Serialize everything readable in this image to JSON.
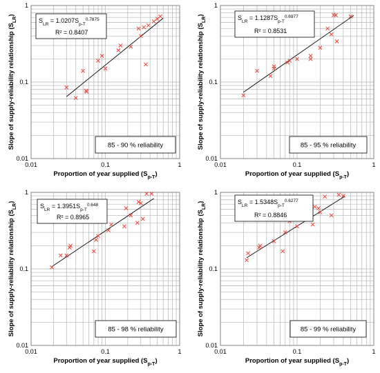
{
  "chart_data": [
    {
      "type": "scatter",
      "xlabel": "Proportion of year supplied (S",
      "xlabel_sub": "p-T",
      "ylabel": "Slope of supply-reliability relationship (S",
      "ylabel_sub": "LR",
      "x_scale": "log",
      "y_scale": "log",
      "xlim": [
        0.01,
        1
      ],
      "ylim": [
        0.01,
        1
      ],
      "x_ticks": [
        "0.01",
        "0.1",
        "1"
      ],
      "y_ticks": [
        "0.01",
        "0.1",
        "1"
      ],
      "grid": true,
      "equation": {
        "a": "S",
        "a_sub": "LR",
        "b": " = 1.0207S",
        "b_sub": "p-T",
        "exp": "0.7875"
      },
      "r2": "R² = 0.8407",
      "reliability_label": "85 - 90 % reliability",
      "fit": {
        "coef": 1.0207,
        "exp": 0.7875,
        "x_range": [
          0.03,
          0.6
        ]
      },
      "points": [
        [
          0.03,
          0.085
        ],
        [
          0.04,
          0.062
        ],
        [
          0.05,
          0.14
        ],
        [
          0.055,
          0.077
        ],
        [
          0.056,
          0.075
        ],
        [
          0.08,
          0.19
        ],
        [
          0.09,
          0.22
        ],
        [
          0.1,
          0.15
        ],
        [
          0.15,
          0.26
        ],
        [
          0.16,
          0.3
        ],
        [
          0.22,
          0.29
        ],
        [
          0.28,
          0.5
        ],
        [
          0.3,
          0.4
        ],
        [
          0.33,
          0.52
        ],
        [
          0.35,
          0.17
        ],
        [
          0.38,
          0.55
        ],
        [
          0.45,
          0.62
        ],
        [
          0.5,
          0.67
        ],
        [
          0.55,
          0.72
        ]
      ]
    },
    {
      "type": "scatter",
      "xlabel": "Proportion of year supplied (S",
      "xlabel_sub": "p-T",
      "ylabel": "Slope of supply-reliability relationship (S",
      "ylabel_sub": "LR",
      "x_scale": "log",
      "y_scale": "log",
      "xlim": [
        0.01,
        1
      ],
      "ylim": [
        0.01,
        1
      ],
      "x_ticks": [
        "0.01",
        "0.1",
        "1"
      ],
      "y_ticks": [
        "0.01",
        "0.1",
        "1"
      ],
      "grid": true,
      "equation": {
        "a": "S",
        "a_sub": "LR",
        "b": " = 1.1287S",
        "b_sub": "p-T",
        "exp": "0.6977"
      },
      "r2": "R² = 0.8531",
      "reliability_label": "85 - 95 % reliability",
      "fit": {
        "coef": 1.1287,
        "exp": 0.6977,
        "x_range": [
          0.02,
          0.55
        ]
      },
      "points": [
        [
          0.02,
          0.067
        ],
        [
          0.03,
          0.14
        ],
        [
          0.045,
          0.12
        ],
        [
          0.05,
          0.15
        ],
        [
          0.05,
          0.16
        ],
        [
          0.075,
          0.18
        ],
        [
          0.08,
          0.19
        ],
        [
          0.1,
          0.2
        ],
        [
          0.15,
          0.2
        ],
        [
          0.15,
          0.22
        ],
        [
          0.2,
          0.28
        ],
        [
          0.25,
          0.5
        ],
        [
          0.28,
          0.42
        ],
        [
          0.3,
          0.75
        ],
        [
          0.32,
          0.75
        ],
        [
          0.33,
          0.34
        ],
        [
          0.5,
          0.72
        ]
      ]
    },
    {
      "type": "scatter",
      "xlabel": "Proportion of year supplied (S",
      "xlabel_sub": "p-T",
      "ylabel": "Slope of supply-reliability relationship (S",
      "ylabel_sub": "LR",
      "x_scale": "log",
      "y_scale": "log",
      "xlim": [
        0.01,
        1
      ],
      "ylim": [
        0.01,
        1
      ],
      "x_ticks": [
        "0.01",
        "0.1",
        "1"
      ],
      "y_ticks": [
        "0.01",
        "0.1",
        "1"
      ],
      "grid": true,
      "equation": {
        "a": "S",
        "a_sub": "LR",
        "b": " = 1.3951S",
        "b_sub": "p-T",
        "exp": "0.648"
      },
      "r2": "R² = 0.8965",
      "reliability_label": "85 - 98 % reliability",
      "fit": {
        "coef": 1.3951,
        "exp": 0.648,
        "x_range": [
          0.019,
          0.45
        ]
      },
      "points": [
        [
          0.019,
          0.105
        ],
        [
          0.025,
          0.15
        ],
        [
          0.03,
          0.15
        ],
        [
          0.033,
          0.19
        ],
        [
          0.034,
          0.2
        ],
        [
          0.07,
          0.17
        ],
        [
          0.075,
          0.24
        ],
        [
          0.08,
          0.27
        ],
        [
          0.11,
          0.32
        ],
        [
          0.12,
          0.38
        ],
        [
          0.18,
          0.36
        ],
        [
          0.19,
          0.62
        ],
        [
          0.22,
          0.5
        ],
        [
          0.27,
          0.4
        ],
        [
          0.28,
          0.75
        ],
        [
          0.3,
          0.72
        ],
        [
          0.32,
          0.45
        ],
        [
          0.36,
          0.96
        ],
        [
          0.42,
          0.96
        ]
      ]
    },
    {
      "type": "scatter",
      "xlabel": "Proportion of year supplied (S",
      "xlabel_sub": "p-T",
      "ylabel": "Slope of supply-reliability relationship (S",
      "ylabel_sub": "LR",
      "x_scale": "log",
      "y_scale": "log",
      "xlim": [
        0.01,
        1
      ],
      "ylim": [
        0.01,
        1
      ],
      "x_ticks": [
        "0.01",
        "0.1",
        "1"
      ],
      "y_ticks": [
        "0.01",
        "0.1",
        "1"
      ],
      "grid": true,
      "equation": {
        "a": "S",
        "a_sub": "LR",
        "b": " = 1.5348S",
        "b_sub": "p-T",
        "exp": "0.6277"
      },
      "r2": "R² = 0.8846",
      "reliability_label": "85 - 99 % reliability",
      "fit": {
        "coef": 1.5348,
        "exp": 0.6277,
        "x_range": [
          0.022,
          0.42
        ]
      },
      "points": [
        [
          0.022,
          0.13
        ],
        [
          0.023,
          0.16
        ],
        [
          0.032,
          0.19
        ],
        [
          0.033,
          0.2
        ],
        [
          0.05,
          0.23
        ],
        [
          0.065,
          0.17
        ],
        [
          0.07,
          0.3
        ],
        [
          0.08,
          0.42
        ],
        [
          0.1,
          0.36
        ],
        [
          0.16,
          0.38
        ],
        [
          0.17,
          0.65
        ],
        [
          0.19,
          0.62
        ],
        [
          0.2,
          0.55
        ],
        [
          0.23,
          0.88
        ],
        [
          0.28,
          0.5
        ],
        [
          0.35,
          0.93
        ],
        [
          0.4,
          0.9
        ]
      ]
    }
  ],
  "colors": {
    "marker": "#e8453c",
    "line": "#000000",
    "grid": "#b3b3b3",
    "axis": "#808080"
  }
}
